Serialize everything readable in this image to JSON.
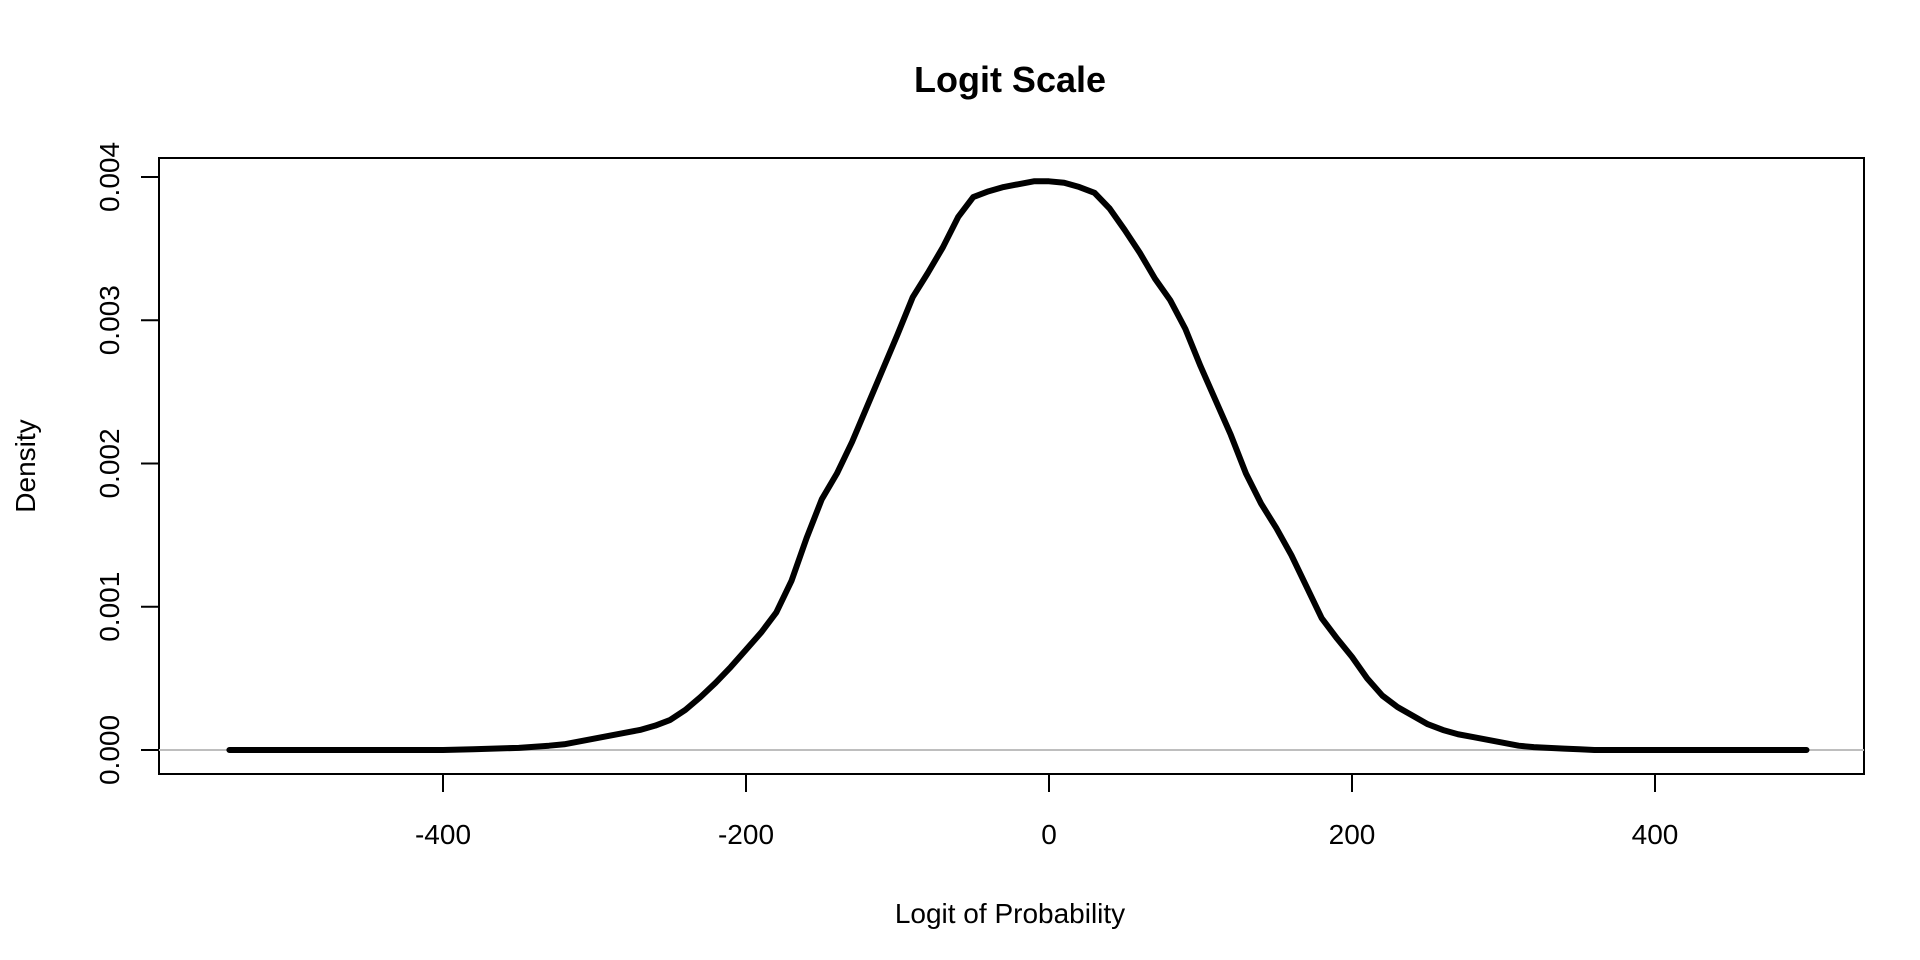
{
  "chart_data": {
    "type": "line",
    "title": "Logit Scale",
    "xlabel": "Logit of Probability",
    "ylabel": "Density",
    "xlim": [
      -541,
      500
    ],
    "ylim": [
      0.0,
      0.004
    ],
    "x_ticks": [
      -400,
      -200,
      0,
      200,
      400
    ],
    "x_tick_labels": [
      "-400",
      "-200",
      "0",
      "200",
      "400"
    ],
    "y_ticks": [
      0.0,
      0.001,
      0.002,
      0.003,
      0.004
    ],
    "y_tick_labels": [
      "0.000",
      "0.001",
      "0.002",
      "0.003",
      "0.004"
    ],
    "grid": false,
    "baseline": {
      "y": 0,
      "color": "#bebebe"
    },
    "line_color": "#000000",
    "series": [
      {
        "x": [
          -541,
          -500,
          -450,
          -400,
          -380,
          -350,
          -330,
          -320,
          -310,
          -300,
          -290,
          -280,
          -270,
          -260,
          -250,
          -240,
          -230,
          -220,
          -210,
          -200,
          -190,
          -180,
          -170,
          -160,
          -150,
          -140,
          -130,
          -120,
          -110,
          -100,
          -90,
          -80,
          -70,
          -60,
          -50,
          -40,
          -30,
          -20,
          -10,
          0,
          10,
          20,
          30,
          40,
          50,
          60,
          70,
          80,
          90,
          100,
          110,
          120,
          130,
          140,
          150,
          160,
          170,
          180,
          190,
          200,
          210,
          220,
          230,
          240,
          250,
          260,
          270,
          280,
          290,
          300,
          310,
          320,
          330,
          340,
          350,
          360,
          380,
          400,
          450,
          500
        ],
        "y": [
          0.0,
          0.0,
          0.0,
          0.0,
          5e-06,
          1.5e-05,
          3e-05,
          4e-05,
          6e-05,
          8e-05,
          0.0001,
          0.00012,
          0.00014,
          0.00017,
          0.00021,
          0.00028,
          0.00037,
          0.00047,
          0.00058,
          0.0007,
          0.00082,
          0.00096,
          0.00118,
          0.00148,
          0.00175,
          0.00193,
          0.00215,
          0.0024,
          0.00265,
          0.0029,
          0.00316,
          0.00333,
          0.00351,
          0.00372,
          0.00386,
          0.0039,
          0.00393,
          0.00395,
          0.00397,
          0.00397,
          0.00396,
          0.00393,
          0.00389,
          0.00378,
          0.00363,
          0.00347,
          0.00329,
          0.00314,
          0.00294,
          0.00268,
          0.00244,
          0.0022,
          0.00193,
          0.00172,
          0.00155,
          0.00136,
          0.00114,
          0.00092,
          0.00078,
          0.00065,
          0.0005,
          0.00038,
          0.0003,
          0.00024,
          0.00018,
          0.00014,
          0.00011,
          9e-05,
          7e-05,
          5e-05,
          3e-05,
          2e-05,
          1.5e-05,
          1e-05,
          5e-06,
          0.0,
          0.0,
          0.0,
          0.0,
          0.0
        ]
      }
    ]
  }
}
